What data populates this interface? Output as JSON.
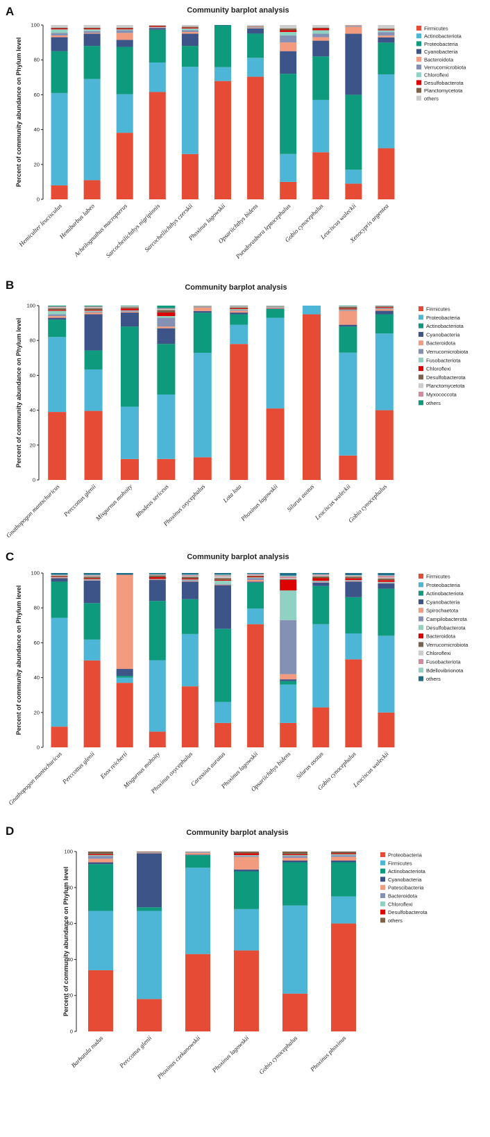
{
  "colors": {
    "Firmicutes": "#e64b35",
    "Actinobacteriota": "#4db6d6",
    "Proteobacteria": "#0e9a7c",
    "Cyanobacteria": "#3c5488",
    "Bacteroidota": "#f39b7f",
    "Verrucomicrobiota": "#8491b4",
    "Chloroflexi": "#91d1c2",
    "Desulfobacterota": "#dc0000",
    "Planctomycetota": "#7e6148",
    "Fusobacteriota": "#b09c85",
    "Myxococcota": "#d48a9a",
    "Spirochaetota": "#f39b7f",
    "Campilobacterota": "#8491b4",
    "Bdellovibrionota": "#1f6e8c",
    "Patescibacteria": "#f39b7f",
    "others": "#cccccc",
    "othersC": "#1f6e8c",
    "othersD": "#7e6148"
  },
  "chart_data": [
    {
      "panel": "A",
      "type": "bar",
      "stacked": true,
      "title": "Community barplot analysis",
      "ylabel": "Percent of community abundance on Phylum level",
      "ylim": [
        0,
        100
      ],
      "yticks": [
        "0",
        "20",
        "40",
        "60",
        "80",
        "100"
      ],
      "categories": [
        "Hemiculter leucisculus",
        "Hemibarbus labeo",
        "Acheilognathus macropterus",
        "Sarcocheilichthys nigripinnis",
        "Sarcocheilichthys czerskii",
        "Phoxinus lagowskii",
        "Opsariichthys bidens",
        "Pseudorasbora leptocephalus",
        "Gobio cynocephalus",
        "Leuciscus waleckii",
        "Xenocypris argentea"
      ],
      "series": [
        {
          "name": "Firmicutes",
          "colorKey": "Firmicutes",
          "values": [
            8,
            11,
            38,
            62,
            26,
            68,
            71,
            10,
            27,
            9,
            29
          ]
        },
        {
          "name": "Actinobacteriota",
          "colorKey": "Actinobacteriota",
          "values": [
            53,
            58,
            22,
            17,
            50,
            8,
            11,
            16,
            30,
            8,
            42
          ]
        },
        {
          "name": "Proteobacteria",
          "colorKey": "Proteobacteria",
          "values": [
            24,
            19,
            27,
            19,
            12,
            24,
            14,
            46,
            25,
            43,
            18
          ]
        },
        {
          "name": "Cyanobacteria",
          "colorKey": "Cyanobacteria",
          "values": [
            8,
            7,
            4,
            1,
            7,
            0.2,
            3,
            13,
            9,
            35,
            3
          ]
        },
        {
          "name": "Bacteroidota",
          "colorKey": "Bacteroidota",
          "values": [
            1,
            0.5,
            4,
            0.2,
            1,
            0,
            0.3,
            5,
            2,
            4,
            1
          ]
        },
        {
          "name": "Verrucomicrobiota",
          "colorKey": "Verrucomicrobiota",
          "values": [
            1.5,
            1,
            1.5,
            0.2,
            1,
            0,
            0.3,
            4,
            2,
            0.5,
            2
          ]
        },
        {
          "name": "Chloroflexi",
          "colorKey": "Chloroflexi",
          "values": [
            2,
            1,
            0.5,
            0.2,
            1,
            0,
            0.3,
            2,
            2,
            0.2,
            1
          ]
        },
        {
          "name": "Desulfobacterota",
          "colorKey": "Desulfobacterota",
          "values": [
            0.5,
            0.5,
            0.5,
            0.5,
            0.5,
            0,
            0.2,
            1,
            1,
            0.1,
            0.5
          ]
        },
        {
          "name": "Planctomycetota",
          "colorKey": "Planctomycetota",
          "values": [
            0.5,
            0.5,
            0.5,
            0.2,
            0.5,
            0,
            0.2,
            1,
            0.5,
            0.1,
            0.5
          ]
        },
        {
          "name": "others",
          "colorKey": "others",
          "values": [
            1.5,
            1.5,
            1.5,
            0.4,
            1,
            0,
            0.7,
            2,
            1.5,
            0.1,
            2.0
          ]
        }
      ]
    },
    {
      "panel": "B",
      "type": "bar",
      "stacked": true,
      "title": "Community barplot analysis",
      "ylabel": "Percent of community abundance on Phylum level",
      "ylim": [
        0,
        100
      ],
      "yticks": [
        "0",
        "20",
        "40",
        "60",
        "80",
        "100"
      ],
      "categories": [
        "Gnathopogon mantschuricus",
        "Perccottus glenii",
        "Misgurnus mohoity",
        "Rhodeus sericeus",
        "Phoxinus oxycephalus",
        "Lota lota",
        "Phoxinus lagowskii",
        "Silurus asotus",
        "Leuciscus waleckii",
        "Gobio cynocephalus"
      ],
      "series": [
        {
          "name": "Firmicutes",
          "colorKey": "Firmicutes",
          "values": [
            39,
            40,
            12,
            12,
            13,
            78,
            41,
            95,
            14,
            40
          ]
        },
        {
          "name": "Proteobacteria",
          "colorKey": "Actinobacteriota",
          "values": [
            43,
            24,
            30,
            37,
            60,
            11,
            52,
            5,
            59,
            44
          ]
        },
        {
          "name": "Actinobacteriota",
          "colorKey": "Proteobacteria",
          "values": [
            10,
            11,
            46,
            29,
            23,
            6,
            5,
            0,
            15,
            11
          ]
        },
        {
          "name": "Cyanobacteria",
          "colorKey": "Cyanobacteria",
          "values": [
            1,
            21,
            8,
            9,
            1,
            1,
            0.3,
            0,
            1,
            2
          ]
        },
        {
          "name": "Bacteroidota",
          "colorKey": "Bacteroidota",
          "values": [
            1,
            1,
            0.5,
            1,
            2,
            1,
            0.5,
            0,
            8,
            1
          ]
        },
        {
          "name": "Verrucomicrobiota",
          "colorKey": "Verrucomicrobiota",
          "values": [
            1,
            0.5,
            0.5,
            5,
            0.3,
            0.5,
            0.3,
            0,
            0.5,
            0.3
          ]
        },
        {
          "name": "Fusobacteriota",
          "colorKey": "Chloroflexi",
          "values": [
            2,
            0.5,
            0.3,
            1,
            0.3,
            0.5,
            0.3,
            0,
            0.3,
            0.3
          ]
        },
        {
          "name": "Chloroflexi",
          "colorKey": "Desulfobacterota",
          "values": [
            0.5,
            0.5,
            1,
            2,
            0.1,
            0.5,
            0.1,
            0,
            0.5,
            0.5
          ]
        },
        {
          "name": "Desulfobacterota",
          "colorKey": "Planctomycetota",
          "values": [
            1,
            1,
            0.7,
            1.5,
            0.1,
            0.5,
            0.2,
            0,
            1,
            0.3
          ]
        },
        {
          "name": "Planctomycetota",
          "colorKey": "others",
          "values": [
            0.5,
            0.5,
            0.5,
            0.5,
            0.1,
            0.5,
            0.1,
            0,
            0.2,
            0.2
          ]
        },
        {
          "name": "Myxococcota",
          "colorKey": "Myxococcota",
          "values": [
            0.5,
            0.5,
            0.2,
            0.5,
            0.1,
            0.3,
            0.1,
            0,
            0.2,
            0.2
          ]
        },
        {
          "name": "others",
          "colorKey": "Proteobacteria",
          "values": [
            0.5,
            0.5,
            0.3,
            1.5,
            0.1,
            0.2,
            0.1,
            0,
            0.3,
            0.2
          ]
        }
      ]
    },
    {
      "panel": "C",
      "type": "bar",
      "stacked": true,
      "title": "Community barplot analysis",
      "ylabel": "Percent of community abundance on Phylum level",
      "ylim": [
        0,
        100
      ],
      "yticks": [
        "0",
        "20",
        "40",
        "60",
        "80",
        "100"
      ],
      "categories": [
        "Gnathopogon mantschuricus",
        "Perccottus glenii",
        "Esox reicherti",
        "Misgurnus mohoity",
        "Phoxinus oxycephalus",
        "Carassius auratus",
        "Phoxinus lagowskii",
        "Opsariichthys bidens",
        "Silurus asotus",
        "Gobio cynocephalus",
        "Leuciscus waleckii"
      ],
      "series": [
        {
          "name": "Firmicutes",
          "colorKey": "Firmicutes",
          "values": [
            12,
            50,
            37,
            9,
            35,
            14,
            71,
            14,
            23,
            51,
            20
          ]
        },
        {
          "name": "Proteobacteria",
          "colorKey": "Actinobacteriota",
          "values": [
            63,
            12,
            3,
            41,
            30,
            12,
            9,
            22,
            48,
            15,
            44
          ]
        },
        {
          "name": "Actinobacteriota",
          "colorKey": "Proteobacteria",
          "values": [
            21,
            21,
            1,
            34,
            20,
            42,
            15,
            2,
            22,
            21,
            27
          ]
        },
        {
          "name": "Cyanobacteria",
          "colorKey": "Cyanobacteria",
          "values": [
            2,
            13,
            4,
            12,
            10,
            25,
            0.5,
            1,
            2,
            9,
            3
          ]
        },
        {
          "name": "Spirochaetota",
          "colorKey": "Spirochaetota",
          "values": [
            0.3,
            0.2,
            54,
            0.2,
            0.3,
            0.3,
            1,
            3,
            0.2,
            0.3,
            0.2
          ]
        },
        {
          "name": "Campilobacterota",
          "colorKey": "Campilobacterota",
          "values": [
            0.2,
            0.2,
            0,
            0.2,
            0.5,
            0.3,
            1,
            31,
            0.3,
            0.3,
            0.2
          ]
        },
        {
          "name": "Desulfobacterota",
          "colorKey": "Chloroflexi",
          "values": [
            0.2,
            0.3,
            0,
            0.2,
            0.5,
            2,
            0.5,
            17,
            0.5,
            0.3,
            0.5
          ]
        },
        {
          "name": "Bacteroidota",
          "colorKey": "Desulfobacterota",
          "values": [
            0.3,
            0.5,
            0,
            1,
            0.5,
            0.5,
            0.5,
            6,
            1.5,
            1,
            1
          ]
        },
        {
          "name": "Verrucomicrobiota",
          "colorKey": "Planctomycetota",
          "values": [
            0.5,
            1,
            0,
            1,
            1,
            1,
            0.5,
            0.5,
            1,
            1,
            1
          ]
        },
        {
          "name": "Chloroflexi",
          "colorKey": "others",
          "values": [
            0.2,
            0.3,
            0,
            0.2,
            0.5,
            1,
            0.3,
            0.5,
            0.5,
            0.3,
            0.5
          ]
        },
        {
          "name": "Fusobacteriota",
          "colorKey": "Myxococcota",
          "values": [
            0.2,
            0.5,
            0,
            0.2,
            0.5,
            0.5,
            0.5,
            1,
            0.5,
            0.3,
            1
          ]
        },
        {
          "name": "Bdellovibrionota",
          "colorKey": "Chloroflexi",
          "values": [
            0.1,
            0.3,
            0,
            0.3,
            0.3,
            0.5,
            0.2,
            0.5,
            0.3,
            0.3,
            0.3
          ]
        },
        {
          "name": "others",
          "colorKey": "othersC",
          "values": [
            1.0,
            1.0,
            1,
            0.7,
            0.9,
            0.9,
            0.5,
            1.5,
            0.7,
            1.2,
            1.3
          ]
        }
      ]
    },
    {
      "panel": "D",
      "type": "bar",
      "stacked": true,
      "title": "Community barplot analysis",
      "ylabel": "Percent of community abundance on Phylum level",
      "ylim": [
        0,
        100
      ],
      "yticks": [
        "0",
        "20",
        "40",
        "60",
        "80",
        "100"
      ],
      "categories": [
        "Barbatula nudus",
        "Perccottus glenii",
        "Phoxinus czekanowskii",
        "Phoxinus lagowskii",
        "Gobio cynocephalus",
        "Phoxinus phoxinus"
      ],
      "series": [
        {
          "name": "Proteobacteria",
          "colorKey": "Firmicutes",
          "values": [
            34,
            18,
            43,
            45,
            21,
            60
          ]
        },
        {
          "name": "Firmicutes",
          "colorKey": "Actinobacteriota",
          "values": [
            33,
            49,
            48,
            23,
            49,
            15
          ]
        },
        {
          "name": "Actinobacteriota",
          "colorKey": "Proteobacteria",
          "values": [
            26,
            2,
            7,
            21,
            24,
            19
          ]
        },
        {
          "name": "Cyanobacteria",
          "colorKey": "Cyanobacteria",
          "values": [
            1,
            30,
            0.3,
            1,
            1,
            1
          ]
        },
        {
          "name": "Patescibacteria",
          "colorKey": "Patescibacteria",
          "values": [
            2,
            0.3,
            1,
            7,
            1.5,
            2
          ]
        },
        {
          "name": "Bacteroidota",
          "colorKey": "Verrucomicrobiota",
          "values": [
            1.5,
            0.2,
            0.3,
            0.5,
            1,
            1
          ]
        },
        {
          "name": "Chloroflexi",
          "colorKey": "Chloroflexi",
          "values": [
            0.5,
            0.1,
            0.2,
            0.5,
            0.5,
            0.5
          ]
        },
        {
          "name": "Desulfobacterota",
          "colorKey": "Desulfobacterota",
          "values": [
            0.5,
            0.1,
            0.1,
            1,
            0.5,
            0.5
          ]
        },
        {
          "name": "others",
          "colorKey": "othersD",
          "values": [
            1.5,
            0.3,
            0.1,
            1,
            1.5,
            1
          ]
        }
      ]
    }
  ]
}
